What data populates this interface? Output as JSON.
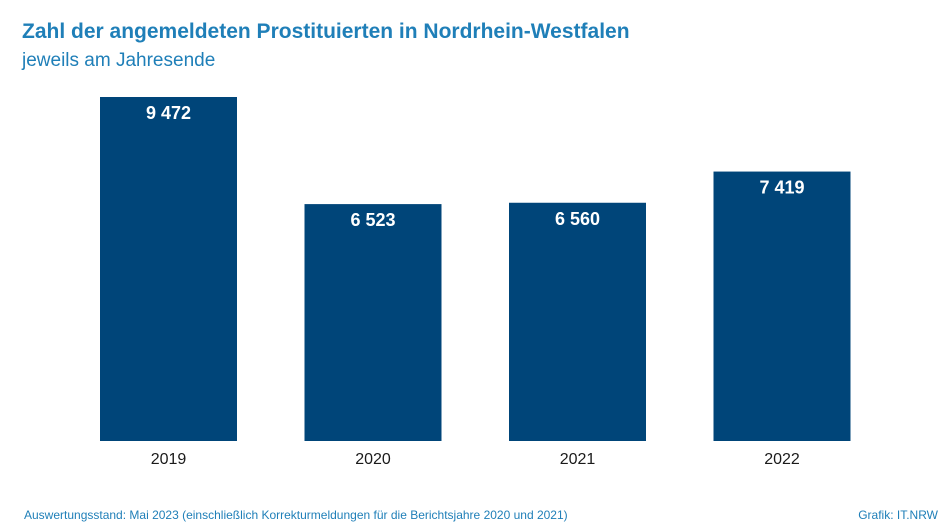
{
  "header": {
    "title": "Zahl der angemeldeten Prostituierten in Nordrhein-Westfalen",
    "subtitle": "jeweils am Jahresende"
  },
  "footer": {
    "note": "Auswertungsstand: Mai 2023 (einschließlich Korrekturmeldungen für die Berichtsjahre 2020 und 2021)",
    "source": "Grafik: IT.NRW"
  },
  "colors": {
    "bar": "#004579",
    "title": "#1f7fb8",
    "bar_label": "#ffffff",
    "tick_label": "#1a1a1a"
  },
  "chart_data": {
    "type": "bar",
    "title": "Zahl der angemeldeten Prostituierten in Nordrhein-Westfalen",
    "subtitle": "jeweils am Jahresende",
    "categories": [
      "2019",
      "2020",
      "2021",
      "2022"
    ],
    "values": [
      9472,
      6523,
      6560,
      7419
    ],
    "value_labels": [
      "9 472",
      "6 523",
      "6 560",
      "7 419"
    ],
    "xlabel": "",
    "ylabel": "",
    "ylim": [
      0,
      9472
    ],
    "grid": false,
    "legend": "none"
  }
}
